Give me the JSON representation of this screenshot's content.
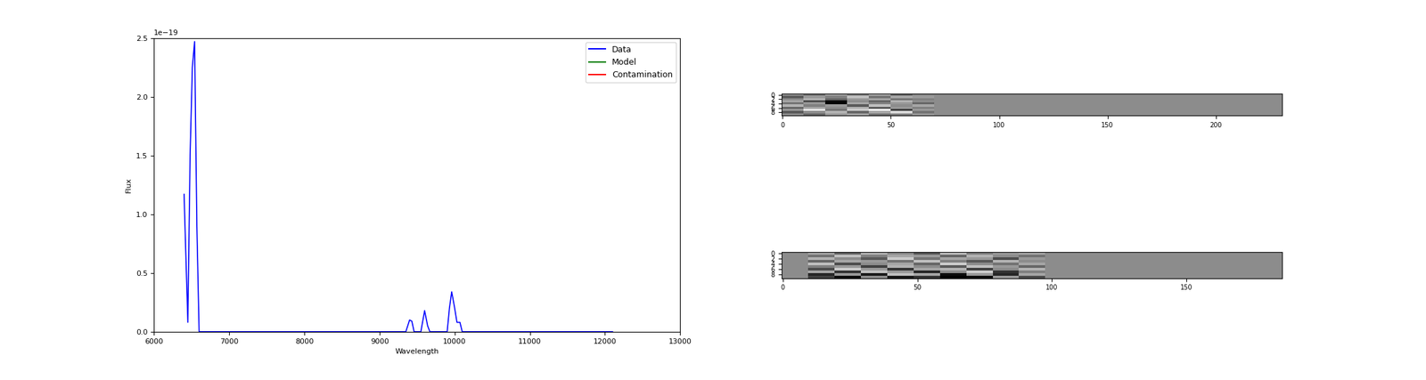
{
  "chart_data": [
    {
      "type": "line",
      "x_label": "Wavelength",
      "y_label": "Flux",
      "annotations": [
        {
          "text": "1e−19"
        }
      ],
      "xlim": [
        6000,
        13000
      ],
      "xticks": [
        6000,
        7000,
        8000,
        9000,
        10000,
        11000,
        12000,
        13000
      ],
      "ylim": [
        0,
        2.5e-19
      ],
      "yticks": [
        {
          "value": 0,
          "label": "0.0"
        },
        {
          "value": 5e-20,
          "label": "0.5"
        },
        {
          "value": 1e-19,
          "label": "1.0"
        },
        {
          "value": 1.5e-19,
          "label": "1.5"
        },
        {
          "value": 2e-19,
          "label": "2.0"
        },
        {
          "value": 2.5e-19,
          "label": "2.5"
        }
      ],
      "legend": "upper right",
      "series": [
        {
          "name": "Data",
          "color": "#0000ff",
          "x": [
            6400,
            6450,
            6480,
            6510,
            6540,
            6570,
            6600,
            6650,
            9350,
            9400,
            9430,
            9460,
            9550,
            9600,
            9640,
            9670,
            9900,
            9930,
            9960,
            10000,
            10030,
            10070,
            10100,
            12100
          ],
          "values": [
            1.17e-19,
            8e-21,
            1.5e-19,
            2.25e-19,
            2.47e-19,
            9e-20,
            0.0,
            0.0,
            0.0,
            1e-20,
            9e-21,
            0.0,
            0.0,
            1.8e-20,
            5e-21,
            0.0,
            0.0,
            2e-20,
            3.4e-20,
            2e-20,
            8e-21,
            8e-21,
            0.0,
            0.0
          ]
        },
        {
          "name": "Model",
          "color": "#008000",
          "x": [],
          "values": []
        },
        {
          "name": "Contamination",
          "color": "#ff0000",
          "x": [],
          "values": []
        }
      ]
    },
    {
      "type": "heatmap",
      "xlim": [
        -0.5,
        230.5
      ],
      "ylim": [
        9.5,
        -0.5
      ],
      "xticks": [
        0,
        50,
        100,
        150,
        200
      ],
      "yticks": [
        0,
        2,
        4,
        6,
        8
      ],
      "color_range": [
        -1,
        1
      ],
      "cells": [
        [
          0.2,
          -0.1,
          0.3,
          0.0,
          0.4,
          -0.2,
          0.1,
          0.1,
          0.1,
          0.1,
          0.1,
          0.1,
          0.1,
          0.1,
          0.1,
          0.1,
          0.1,
          0.1,
          0.1,
          0.1,
          0.1,
          0.1,
          0.1
        ],
        [
          -0.3,
          0.2,
          0.0,
          0.5,
          -0.1,
          0.3,
          0.2,
          0.1,
          0.1,
          0.1,
          0.1,
          0.1,
          0.1,
          0.1,
          0.1,
          0.1,
          0.1,
          0.1,
          0.1,
          0.1,
          0.1,
          0.1,
          0.1
        ],
        [
          0.1,
          0.4,
          -0.2,
          0.2,
          0.3,
          -0.1,
          0.0,
          0.1,
          0.1,
          0.1,
          0.1,
          0.1,
          0.1,
          0.1,
          0.1,
          0.1,
          0.1,
          0.1,
          0.1,
          0.1,
          0.1,
          0.1,
          0.1
        ],
        [
          0.3,
          -0.4,
          -0.9,
          0.1,
          -0.2,
          0.4,
          0.1,
          0.1,
          0.1,
          0.1,
          0.1,
          0.1,
          0.1,
          0.1,
          0.1,
          0.1,
          0.1,
          0.1,
          0.1,
          0.1,
          0.1,
          0.1,
          0.1
        ],
        [
          -0.1,
          0.2,
          -1.0,
          0.3,
          0.0,
          0.2,
          -0.2,
          0.1,
          0.1,
          0.1,
          0.1,
          0.1,
          0.1,
          0.1,
          0.1,
          0.1,
          0.1,
          0.1,
          0.1,
          0.1,
          0.1,
          0.1,
          0.1
        ],
        [
          0.4,
          0.0,
          0.2,
          -0.3,
          0.5,
          0.1,
          0.3,
          0.1,
          0.1,
          0.1,
          0.1,
          0.1,
          0.1,
          0.1,
          0.1,
          0.1,
          0.1,
          0.1,
          0.1,
          0.1,
          0.1,
          0.1,
          0.1
        ],
        [
          -0.2,
          0.3,
          0.1,
          0.4,
          -0.3,
          0.2,
          0.0,
          0.1,
          0.1,
          0.1,
          0.1,
          0.1,
          0.1,
          0.1,
          0.1,
          0.1,
          0.1,
          0.1,
          0.1,
          0.1,
          0.1,
          0.1,
          0.1
        ],
        [
          0.2,
          0.8,
          -0.1,
          0.6,
          0.9,
          -0.5,
          0.2,
          0.1,
          0.1,
          0.1,
          0.1,
          0.1,
          0.1,
          0.1,
          0.1,
          0.1,
          0.1,
          0.1,
          0.1,
          0.1,
          0.1,
          0.1,
          0.1
        ],
        [
          -0.3,
          0.1,
          0.4,
          -0.2,
          0.3,
          0.7,
          -0.1,
          0.1,
          0.1,
          0.1,
          0.1,
          0.1,
          0.1,
          0.1,
          0.1,
          0.1,
          0.1,
          0.1,
          0.1,
          0.1,
          0.1,
          0.1,
          0.1
        ],
        [
          0.1,
          -0.2,
          0.2,
          0.3,
          -0.1,
          0.0,
          0.2,
          0.1,
          0.1,
          0.1,
          0.1,
          0.1,
          0.1,
          0.1,
          0.1,
          0.1,
          0.1,
          0.1,
          0.1,
          0.1,
          0.1,
          0.1,
          0.1
        ]
      ]
    },
    {
      "type": "heatmap",
      "xlim": [
        -0.5,
        185.5
      ],
      "ylim": [
        9.5,
        -0.5
      ],
      "xticks": [
        0,
        50,
        100,
        150
      ],
      "yticks": [
        0,
        2,
        4,
        6,
        8
      ],
      "color_range": [
        -1,
        1
      ],
      "cells": [
        [
          0.1,
          0.3,
          -0.2,
          0.4,
          0.1,
          -0.3,
          0.5,
          0.0,
          0.2,
          0.3,
          0.1,
          0.1,
          0.1,
          0.1,
          0.1,
          0.1,
          0.1,
          0.1,
          0.1
        ],
        [
          0.1,
          -0.1,
          0.5,
          0.0,
          0.3,
          0.2,
          -0.2,
          0.4,
          0.1,
          -0.1,
          0.1,
          0.1,
          0.1,
          0.1,
          0.1,
          0.1,
          0.1,
          0.1,
          0.1
        ],
        [
          0.1,
          0.4,
          0.1,
          -0.3,
          0.6,
          -0.1,
          0.3,
          0.2,
          -0.4,
          0.2,
          0.1,
          0.1,
          0.1,
          0.1,
          0.1,
          0.1,
          0.1,
          0.1,
          0.1
        ],
        [
          0.1,
          -0.2,
          0.3,
          0.2,
          -0.1,
          0.5,
          0.0,
          -0.3,
          0.4,
          0.1,
          0.1,
          0.1,
          0.1,
          0.1,
          0.1,
          0.1,
          0.1,
          0.1,
          0.1
        ],
        [
          0.1,
          0.5,
          -0.4,
          0.1,
          0.3,
          -0.2,
          0.6,
          0.1,
          -0.1,
          0.3,
          0.1,
          0.1,
          0.1,
          0.1,
          0.1,
          0.1,
          0.1,
          0.1,
          0.1
        ],
        [
          0.1,
          0.0,
          0.2,
          -0.5,
          0.4,
          0.1,
          -0.3,
          0.5,
          0.2,
          -0.2,
          0.1,
          0.1,
          0.1,
          0.1,
          0.1,
          0.1,
          0.1,
          0.1,
          0.1
        ],
        [
          0.1,
          -0.4,
          0.6,
          0.2,
          -0.6,
          0.3,
          0.4,
          -0.5,
          0.1,
          0.4,
          0.1,
          0.1,
          0.1,
          0.1,
          0.1,
          0.1,
          0.1,
          0.1,
          0.1
        ],
        [
          0.1,
          0.3,
          -0.6,
          0.5,
          0.2,
          -0.7,
          0.1,
          0.6,
          -0.6,
          0.0,
          0.1,
          0.1,
          0.1,
          0.1,
          0.1,
          0.1,
          0.1,
          0.1,
          0.1
        ],
        [
          0.1,
          -0.7,
          0.2,
          -0.8,
          0.5,
          0.3,
          -0.9,
          0.2,
          -0.7,
          0.3,
          0.1,
          0.1,
          0.1,
          0.1,
          0.1,
          0.1,
          0.1,
          0.1,
          0.1
        ],
        [
          0.1,
          -0.5,
          -0.9,
          0.1,
          -0.8,
          -0.6,
          -1.0,
          -0.9,
          0.2,
          -0.4,
          0.1,
          0.1,
          0.1,
          0.1,
          0.1,
          0.1,
          0.1,
          0.1,
          0.1
        ]
      ]
    }
  ]
}
